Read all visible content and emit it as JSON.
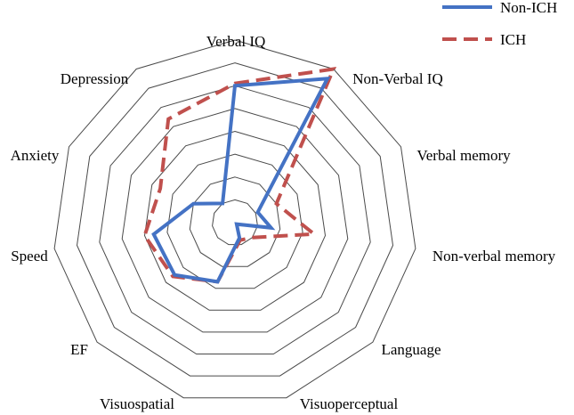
{
  "chart_data": {
    "type": "radar",
    "axes": [
      "Verbal IQ",
      "Non-Verbal IQ",
      "Verbal memory",
      "Non-verbal memory",
      "Language",
      "Visuoperceptual",
      "Visuospatial",
      "EF",
      "Speed",
      "Anxiety",
      "Depression"
    ],
    "rmax": 8,
    "rings": 8,
    "series": [
      {
        "name": "Non-ICH",
        "color": "#4472c4",
        "dash": "none",
        "values": [
          6.0,
          7.5,
          1.1,
          1.6,
          0.1,
          0.7,
          2.7,
          3.5,
          3.6,
          2.0,
          1.0
        ]
      },
      {
        "name": "ICH",
        "color": "#c0504d",
        "dash": "16 8",
        "values": [
          6.1,
          8.0,
          2.0,
          3.5,
          1.0,
          0.8,
          2.7,
          3.6,
          4.0,
          3.6,
          5.4
        ]
      }
    ],
    "legend_position": "top-right",
    "grid": true
  }
}
